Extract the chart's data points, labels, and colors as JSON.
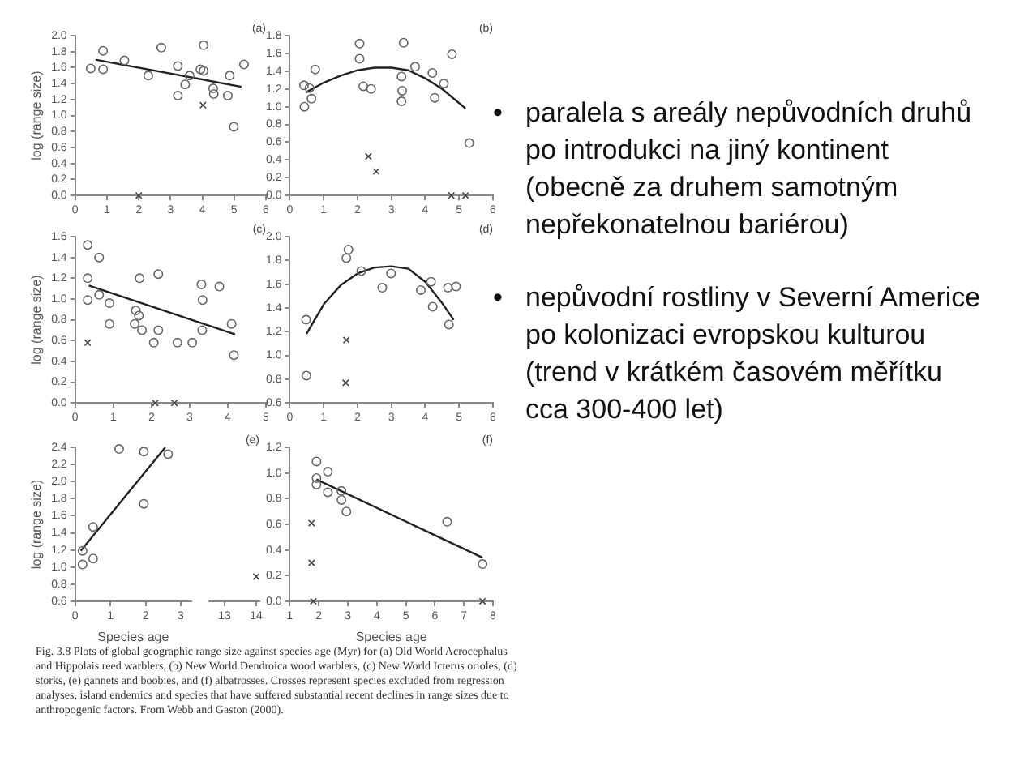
{
  "chart_data": [
    {
      "type": "scatter",
      "title": "(a)",
      "ylabel": "log (range size)",
      "xlim": [
        0,
        6
      ],
      "ylim": [
        0,
        2
      ],
      "xticks": [
        0,
        1,
        2,
        3,
        4,
        5,
        6
      ],
      "yticks": [
        {
          "value": 0,
          "label": "0.0"
        },
        0.2,
        0.4,
        0.6,
        0.8,
        {
          "value": 1,
          "label": "1.0"
        },
        1.2,
        1.4,
        1.6,
        1.8,
        {
          "value": 2,
          "label": "2.0"
        }
      ],
      "grid": false,
      "legend": false,
      "series": [
        {
          "type": "scatter",
          "marker": "circle",
          "color": "#666666",
          "x": [
            0.49,
            0.88,
            0.88,
            1.55,
            2.3,
            2.71,
            3.23,
            3.46,
            3.23,
            3.6,
            3.94,
            4.04,
            4.04,
            4.34,
            4.36,
            4.86,
            4.8,
            5.31,
            4.99
          ],
          "values": [
            1.59,
            1.81,
            1.58,
            1.69,
            1.5,
            1.85,
            1.62,
            1.39,
            1.25,
            1.5,
            1.58,
            1.88,
            1.56,
            1.34,
            1.27,
            1.5,
            1.25,
            1.64,
            0.86
          ]
        },
        {
          "type": "scatter",
          "marker": "cross",
          "color": "#444444",
          "x": [
            4.02,
            2.0
          ],
          "values": [
            1.13,
            0
          ]
        },
        {
          "type": "line",
          "marker": "none",
          "color": "#222222",
          "x": [
            0.64,
            5.23
          ],
          "values": [
            1.7,
            1.36
          ]
        }
      ]
    },
    {
      "type": "scatter",
      "title": "(b)",
      "xlim": [
        0,
        6
      ],
      "ylim": [
        0,
        1.8
      ],
      "xticks": [
        0,
        1,
        2,
        3,
        4,
        5,
        6
      ],
      "yticks": [
        {
          "value": 0,
          "label": "0.0"
        },
        0.2,
        0.4,
        0.6,
        0.8,
        {
          "value": 1,
          "label": "1.0"
        },
        1.2,
        1.4,
        1.6,
        1.8
      ],
      "grid": false,
      "legend": false,
      "series": [
        {
          "type": "scatter",
          "marker": "circle",
          "color": "#666666",
          "x": [
            0.43,
            0.42,
            0.58,
            0.64,
            0.75,
            2.06,
            2.06,
            2.17,
            2.4,
            3.36,
            3.3,
            3.32,
            3.3,
            3.7,
            4.21,
            4.28,
            4.55,
            4.79,
            5.3
          ],
          "values": [
            1.0,
            1.24,
            1.21,
            1.09,
            1.42,
            1.71,
            1.54,
            1.23,
            1.2,
            1.72,
            1.34,
            1.18,
            1.06,
            1.45,
            1.38,
            1.1,
            1.26,
            1.59,
            0.59
          ]
        },
        {
          "type": "scatter",
          "marker": "cross",
          "color": "#444444",
          "x": [
            2.32,
            2.55,
            4.77,
            5.19
          ],
          "values": [
            0.44,
            0.27,
            0,
            0
          ]
        },
        {
          "type": "line",
          "marker": "none",
          "color": "#222222",
          "x": [
            0.47,
            1,
            1.5,
            2,
            2.5,
            3,
            3.5,
            4,
            4.5,
            5.19
          ],
          "values": [
            1.16,
            1.27,
            1.35,
            1.41,
            1.44,
            1.44,
            1.41,
            1.32,
            1.2,
            0.98
          ]
        }
      ]
    },
    {
      "type": "scatter",
      "title": "(c)",
      "ylabel": "log (range size)",
      "xlim": [
        0,
        5
      ],
      "ylim": [
        0,
        1.6
      ],
      "xticks": [
        0,
        1,
        2,
        3,
        4,
        5
      ],
      "yticks": [
        {
          "value": 0,
          "label": "0.0"
        },
        0.2,
        0.4,
        0.6,
        0.8,
        {
          "value": 1,
          "label": "1.0"
        },
        1.2,
        1.4,
        1.6
      ],
      "grid": false,
      "legend": false,
      "series": [
        {
          "type": "scatter",
          "marker": "circle",
          "color": "#666666",
          "x": [
            0.33,
            0.63,
            0.33,
            0.33,
            0.63,
            0.9,
            1.69,
            2.18,
            3.31,
            3.78,
            3.34,
            1.59,
            1.67,
            0.9,
            1.56,
            1.75,
            2.18,
            2.06,
            2.68,
            3.07,
            3.33,
            4.1,
            4.16
          ],
          "values": [
            1.52,
            1.4,
            1.2,
            0.99,
            1.04,
            0.96,
            1.2,
            1.24,
            1.14,
            1.12,
            0.99,
            0.89,
            0.84,
            0.76,
            0.76,
            0.7,
            0.7,
            0.58,
            0.58,
            0.58,
            0.7,
            0.76,
            0.46
          ]
        },
        {
          "type": "scatter",
          "marker": "cross",
          "color": "#444444",
          "x": [
            0.33,
            2.1,
            2.6
          ],
          "values": [
            0.58,
            0,
            0
          ]
        },
        {
          "type": "line",
          "marker": "none",
          "color": "#222222",
          "x": [
            0.36,
            4.19
          ],
          "values": [
            1.13,
            0.66
          ]
        }
      ]
    },
    {
      "type": "scatter",
      "title": "(d)",
      "xlim": [
        0,
        6
      ],
      "ylim": [
        0.6,
        2
      ],
      "xticks": [
        0,
        1,
        2,
        3,
        4,
        5,
        6
      ],
      "yticks": [
        0.6,
        0.8,
        {
          "value": 1,
          "label": "1.0"
        },
        1.2,
        1.4,
        1.6,
        1.8,
        {
          "value": 2,
          "label": "2.0"
        }
      ],
      "grid": false,
      "legend": false,
      "series": [
        {
          "type": "scatter",
          "marker": "circle",
          "color": "#666666",
          "x": [
            0.48,
            1.67,
            1.73,
            2.11,
            2.73,
            2.99,
            3.87,
            4.17,
            4.22,
            4.67,
            4.91,
            4.7,
            0.49
          ],
          "values": [
            1.3,
            1.82,
            1.89,
            1.71,
            1.57,
            1.69,
            1.55,
            1.62,
            1.41,
            1.57,
            1.58,
            1.26,
            0.83
          ]
        },
        {
          "type": "scatter",
          "marker": "cross",
          "color": "#444444",
          "x": [
            1.67,
            1.65
          ],
          "values": [
            1.13,
            0.77
          ]
        },
        {
          "type": "line",
          "marker": "none",
          "color": "#222222",
          "x": [
            0.49,
            1,
            1.5,
            2,
            2.5,
            3,
            3.5,
            4,
            4.5,
            4.84
          ],
          "values": [
            1.18,
            1.43,
            1.59,
            1.69,
            1.74,
            1.75,
            1.73,
            1.62,
            1.44,
            1.3
          ]
        }
      ]
    },
    {
      "type": "scatter",
      "ylabel": "log (range size)",
      "xlabel": "Species age",
      "xlim": [
        0,
        3.3
      ],
      "ylim": [
        0.6,
        2.4
      ],
      "xticks": [
        0,
        1,
        2,
        3
      ],
      "yticks": [
        0.6,
        0.8,
        {
          "value": 1,
          "label": "1.0"
        },
        1.2,
        1.4,
        1.6,
        1.8,
        {
          "value": 2,
          "label": "2.0"
        },
        2.2,
        2.4
      ],
      "grid": false,
      "legend": false,
      "series": [
        {
          "type": "scatter",
          "marker": "circle",
          "color": "#666666",
          "x": [
            0.21,
            0.21,
            0.51,
            0.51,
            1.25,
            1.95,
            2.64,
            1.95
          ],
          "values": [
            1.19,
            1.03,
            1.1,
            1.47,
            2.38,
            2.35,
            2.32,
            1.74
          ]
        },
        {
          "type": "line",
          "marker": "none",
          "color": "#222222",
          "x": [
            0.16,
            2.56
          ],
          "values": [
            1.19,
            2.4
          ]
        }
      ]
    },
    {
      "type": "scatter",
      "title": "(e)",
      "xlim": [
        12.5,
        14.1
      ],
      "ylim": [
        0.6,
        2.4
      ],
      "xticks": [
        13,
        14
      ],
      "tick_labels": "x",
      "grid": false,
      "legend": false,
      "series": [
        {
          "type": "scatter",
          "marker": "cross",
          "color": "#444444",
          "x": [
            14
          ],
          "values": [
            0.89
          ]
        }
      ]
    },
    {
      "type": "scatter",
      "title": "(f)",
      "xlabel": "Species age",
      "xlim": [
        1,
        8
      ],
      "ylim": [
        0,
        1.2
      ],
      "xticks": [
        1,
        2,
        3,
        4,
        5,
        6,
        7,
        8
      ],
      "yticks": [
        {
          "value": 0,
          "label": "0.0"
        },
        0.2,
        0.4,
        0.6,
        0.8,
        {
          "value": 1,
          "label": "1.0"
        },
        1.2
      ],
      "grid": false,
      "legend": false,
      "series": [
        {
          "type": "scatter",
          "marker": "circle",
          "color": "#666666",
          "x": [
            1.92,
            1.92,
            1.92,
            2.31,
            2.31,
            2.78,
            2.78,
            2.95,
            6.42,
            7.64
          ],
          "values": [
            1.09,
            0.96,
            0.91,
            1.01,
            0.85,
            0.86,
            0.79,
            0.7,
            0.62,
            0.29
          ]
        },
        {
          "type": "scatter",
          "marker": "cross",
          "color": "#444444",
          "x": [
            1.75,
            1.75,
            1.81,
            7.64
          ],
          "values": [
            0.61,
            0.3,
            0,
            0
          ]
        },
        {
          "type": "line",
          "marker": "none",
          "color": "#222222",
          "x": [
            1.92,
            7.64
          ],
          "values": [
            0.95,
            0.34
          ]
        }
      ]
    },
    {
      "type": "other",
      "annotations": [
        "Fig. 3.8 Plots of global geographic range size against species age (Myr) for (a) Old World Acrocephalus and Hippolais reed warblers, (b) New World Dendroica wood warblers, (c) New World Icterus orioles, (d) storks, (e) gannets and boobies, and (f) albatrosses. Crosses represent species excluded from regression analyses, island endemics and species that have suffered substantial recent declines in range sizes due to anthropogenic factors. From Webb and Gaston (2000)."
      ]
    },
    {
      "type": "other",
      "annotations": [
        "• paralela s areály nepůvodních druhů po introdukci na jiný kontinent (obecně za druhem samotným nepřekonatelnou bariérou)",
        "• nepůvodní rostliny v Severní Americe po kolonizaci evropskou kulturou (trend v krátkém časovém měřítku cca 300-400 let)"
      ]
    }
  ]
}
